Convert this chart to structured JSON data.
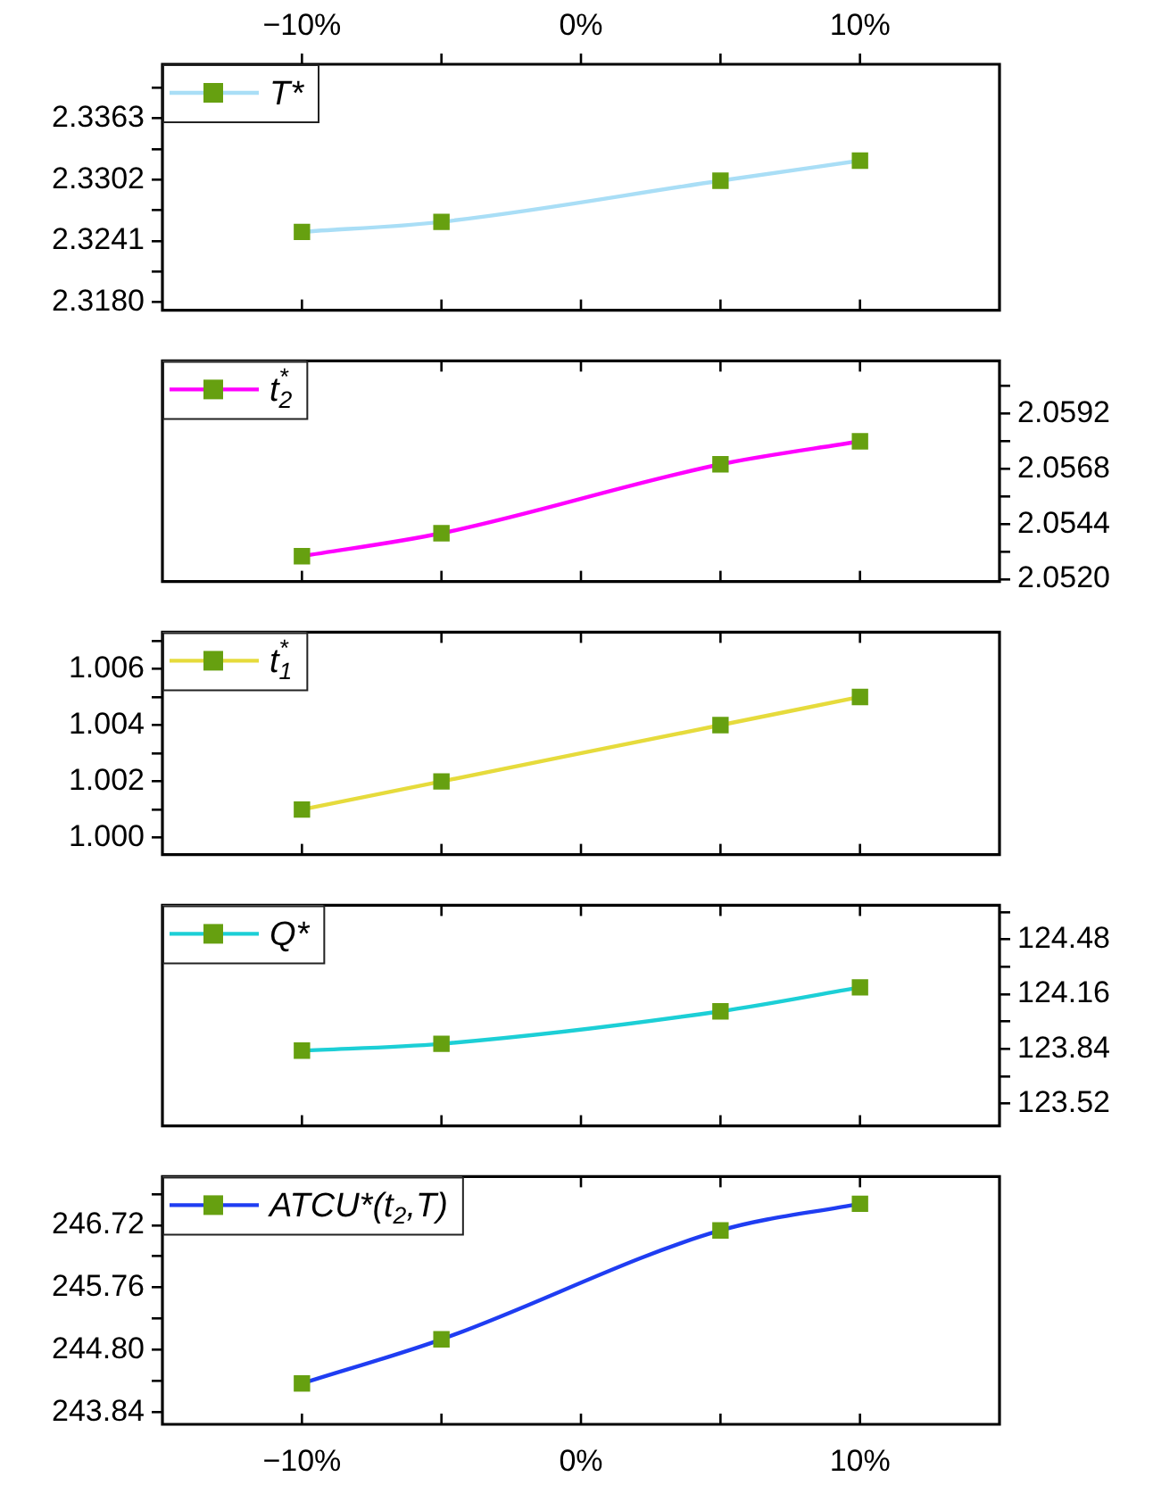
{
  "chart_data": [
    {
      "type": "line",
      "x": [
        -10,
        -5,
        5,
        10
      ],
      "xlim": [
        -15,
        15
      ],
      "xticks": [
        {
          "value": -10,
          "label": null
        },
        {
          "value": -5,
          "label": null
        },
        {
          "value": 0,
          "label": null
        },
        {
          "value": 5,
          "label": null
        },
        {
          "value": 10,
          "label": null
        }
      ],
      "x2lim": [
        -15,
        15
      ],
      "x2ticks": [
        {
          "value": -10,
          "label": "−10%"
        },
        {
          "value": -5,
          "label": null
        },
        {
          "value": 0,
          "label": "0%"
        },
        {
          "value": 5,
          "label": null
        },
        {
          "value": 10,
          "label": "10%"
        }
      ],
      "ylim": [
        2.3172,
        2.3417
      ],
      "yticks": [
        {
          "value": 2.318,
          "label": "2.3180"
        },
        {
          "value": 2.32105,
          "label": null
        },
        2.3241,
        {
          "value": 2.32715,
          "label": null
        },
        2.3302,
        {
          "value": 2.33325,
          "label": null
        },
        2.3363,
        {
          "value": 2.33935,
          "label": null
        }
      ],
      "tick_labels": "y",
      "legend": "top left",
      "marker": "square",
      "line_style": "solid",
      "series": [
        {
          "name": "T*",
          "color": "#a9def6",
          "colors": [
            "#66a010",
            "#66a010",
            "#66a010",
            "#66a010"
          ],
          "values": [
            2.325,
            2.326,
            2.3301,
            2.3321
          ]
        }
      ]
    },
    {
      "type": "line",
      "x": [
        -10,
        -5,
        5,
        10
      ],
      "xlim": [
        -15,
        15
      ],
      "xticks": [
        {
          "value": -10,
          "label": null
        },
        {
          "value": -5,
          "label": null
        },
        {
          "value": 0,
          "label": null
        },
        {
          "value": 5,
          "label": null
        },
        {
          "value": 10,
          "label": null
        }
      ],
      "y2lim": [
        2.0519,
        2.0615
      ],
      "y2ticks": [
        {
          "value": 2.052,
          "label": "2.0520"
        },
        {
          "value": 2.0532,
          "label": null
        },
        2.0544,
        {
          "value": 2.0556,
          "label": null
        },
        2.0568,
        {
          "value": 2.058,
          "label": null
        },
        2.0592,
        {
          "value": 2.0604,
          "label": null
        }
      ],
      "tick_labels": "y",
      "legend": "top left",
      "marker": "square",
      "line_style": "solid",
      "series": [
        {
          "name": "t$^{*}$$_{2}$",
          "axis": "y2",
          "color": "#ff00ff",
          "colors": [
            "#66a010",
            "#66a010",
            "#66a010",
            "#66a010"
          ],
          "values": [
            2.053,
            2.054,
            2.057,
            2.058
          ]
        }
      ]
    },
    {
      "type": "line",
      "x": [
        -10,
        -5,
        5,
        10
      ],
      "xlim": [
        -15,
        15
      ],
      "xticks": [
        {
          "value": -10,
          "label": null
        },
        {
          "value": -5,
          "label": null
        },
        {
          "value": 0,
          "label": null
        },
        {
          "value": 5,
          "label": null
        },
        {
          "value": 10,
          "label": null
        }
      ],
      "ylim": [
        0.9994,
        1.0073
      ],
      "yticks": [
        {
          "value": 1,
          "label": "1.000"
        },
        {
          "value": 1.001,
          "label": null
        },
        {
          "value": 1.002,
          "label": "1.002"
        },
        {
          "value": 1.003,
          "label": null
        },
        {
          "value": 1.004,
          "label": "1.004"
        },
        {
          "value": 1.005,
          "label": null
        },
        {
          "value": 1.006,
          "label": "1.006"
        },
        {
          "value": 1.007,
          "label": null
        }
      ],
      "tick_labels": "y",
      "legend": "top left",
      "marker": "square",
      "line_style": "solid",
      "series": [
        {
          "name": "t$^{*}$$_{1}$",
          "color": "#e6db3c",
          "colors": [
            "#66a010",
            "#66a010",
            "#66a010",
            "#66a010"
          ],
          "values": [
            1.001,
            1.002,
            1.004,
            1.005
          ]
        }
      ]
    },
    {
      "type": "line",
      "x": [
        -10,
        -5,
        5,
        10
      ],
      "xlim": [
        -15,
        15
      ],
      "xticks": [
        {
          "value": -10,
          "label": null
        },
        {
          "value": -5,
          "label": null
        },
        {
          "value": 0,
          "label": null
        },
        {
          "value": 5,
          "label": null
        },
        {
          "value": 10,
          "label": null
        }
      ],
      "y2lim": [
        123.39,
        124.68
      ],
      "y2ticks": [
        123.52,
        {
          "value": 123.68,
          "label": null
        },
        123.84,
        {
          "value": 124,
          "label": null
        },
        124.16,
        {
          "value": 124.32,
          "label": null
        },
        124.48,
        {
          "value": 124.64,
          "label": null
        }
      ],
      "tick_labels": "y",
      "legend": "top left",
      "marker": "square",
      "line_style": "solid",
      "series": [
        {
          "name": "Q*",
          "axis": "y2",
          "color": "#1ccfd6",
          "colors": [
            "#66a010",
            "#66a010",
            "#66a010",
            "#66a010"
          ],
          "values": [
            123.83,
            123.87,
            124.06,
            124.2
          ]
        }
      ]
    },
    {
      "type": "line",
      "x": [
        -10,
        -5,
        5,
        10
      ],
      "xlim": [
        -15,
        15
      ],
      "xticks": [
        {
          "value": -10,
          "label": "−10%"
        },
        {
          "value": -5,
          "label": null
        },
        {
          "value": 0,
          "label": "0%"
        },
        {
          "value": 5,
          "label": null
        },
        {
          "value": 10,
          "label": "10%"
        }
      ],
      "ylim": [
        243.65,
        247.47
      ],
      "yticks": [
        {
          "value": 243.84,
          "label": "243.84"
        },
        {
          "value": 244.32,
          "label": null
        },
        {
          "value": 244.8,
          "label": "244.80"
        },
        {
          "value": 245.28,
          "label": null
        },
        {
          "value": 245.76,
          "label": "245.76"
        },
        {
          "value": 246.24,
          "label": null
        },
        {
          "value": 246.72,
          "label": "246.72"
        },
        {
          "value": 247.2,
          "label": null
        }
      ],
      "legend": "top left",
      "marker": "square",
      "line_style": "solid",
      "series": [
        {
          "name": "ATCU*(t$_{2}$,T)",
          "color": "#1f3df2",
          "colors": [
            "#66a010",
            "#66a010",
            "#66a010",
            "#66a010"
          ],
          "values": [
            244.28,
            244.96,
            246.64,
            247.05
          ]
        }
      ]
    }
  ]
}
